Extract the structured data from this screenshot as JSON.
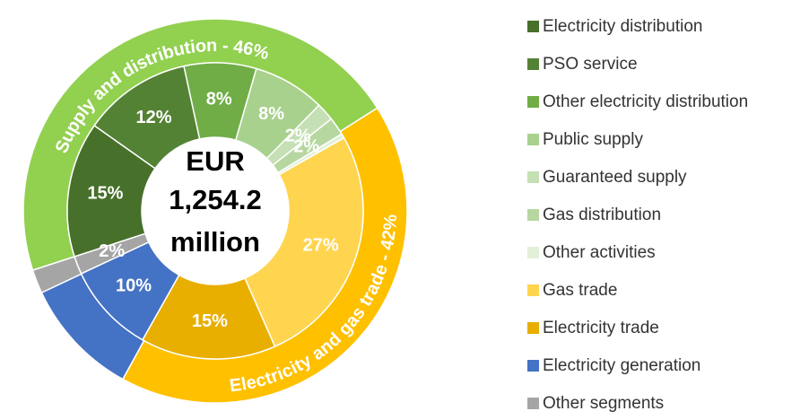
{
  "chart_data": {
    "type": "sunburst",
    "center_label": [
      "EUR",
      "1,254.2",
      "million"
    ],
    "inner": {
      "categories": [
        "Electricity distribution",
        "PSO service",
        "Other electricity distribution",
        "Public supply",
        "Guaranteed supply",
        "Gas distribution",
        "Other activities",
        "Gas trade",
        "Electricity trade",
        "Electricity generation",
        "Other segments"
      ],
      "values": [
        15,
        12,
        8,
        8,
        2,
        2,
        0.5,
        27,
        15,
        10,
        2
      ],
      "value_labels": [
        "15%",
        "12%",
        "8%",
        "8%",
        "2%",
        "2%",
        null,
        "27%",
        "15%",
        "10%",
        "2%"
      ],
      "colors": [
        "#47702a",
        "#548235",
        "#70ad47",
        "#a9d18e",
        "#c5e0b4",
        "#b6d7a0",
        "#e2f0d9",
        "#ffd54f",
        "#e8ae00",
        "#4472c4",
        "#a5a5a5"
      ]
    },
    "outer": {
      "values": [
        46,
        42,
        10,
        2
      ],
      "value_labels": [
        "Supply and distribution - 46%",
        "Electricity and gas trade - 42%",
        null,
        null
      ],
      "colors": [
        "#92d050",
        "#ffc000",
        "#4472c4",
        "#a5a5a5"
      ]
    },
    "legend": "right"
  }
}
